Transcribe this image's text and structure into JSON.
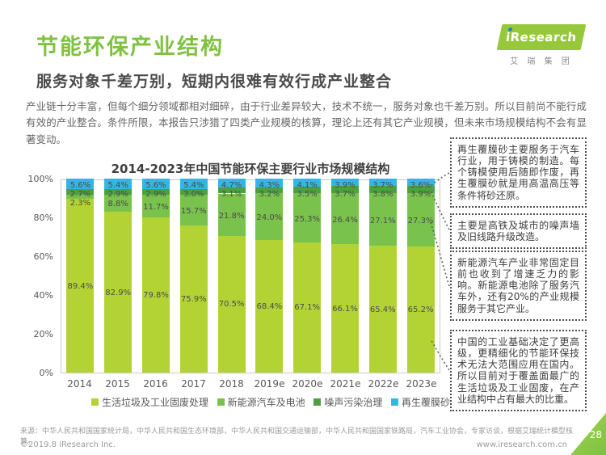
{
  "header": {
    "title": "节能环保产业结构",
    "subtitle": "服务对象千差万别，短期内很难有效行成产业整合",
    "logo": {
      "brand": "iResearch",
      "sub": "艾 瑞 集 团"
    }
  },
  "intro": "产业链十分丰富，但每个细分领域都相对细碎，由于行业差异较大，技术不统一，服务对象也千差万别。所以目前尚不能行成有效的产业整合。条件所限，本报告只涉猎了四类产业规模的核算，理论上还有其它产业规模，但未来市场规模结构不会有显著变动。",
  "chart_data": {
    "type": "bar",
    "stacked": true,
    "title": "2014-2023年中国节能环保主要行业市场规模结构",
    "categories": [
      "2014",
      "2015",
      "2016",
      "2017",
      "2018",
      "2019e",
      "2020e",
      "2021e",
      "2022e",
      "2023e"
    ],
    "series": [
      {
        "name": "生活垃圾及工业固废处理",
        "color": "#b3d335",
        "values": [
          89.4,
          82.9,
          79.8,
          75.9,
          70.5,
          68.4,
          67.1,
          66.1,
          65.4,
          65.2
        ]
      },
      {
        "name": "新能源汽车及电池",
        "color": "#79c24c",
        "values": [
          2.3,
          8.8,
          11.7,
          15.7,
          21.8,
          24.0,
          25.3,
          26.4,
          27.1,
          27.3
        ]
      },
      {
        "name": "噪声污染治理",
        "color": "#4da03f",
        "values": [
          2.7,
          2.9,
          2.9,
          3.0,
          3.1,
          3.2,
          3.5,
          3.7,
          3.8,
          3.9
        ]
      },
      {
        "name": "再生覆膜砂",
        "color": "#33b6e3",
        "values": [
          5.6,
          5.4,
          5.6,
          5.4,
          4.7,
          4.3,
          4.1,
          3.9,
          3.7,
          3.6
        ]
      }
    ],
    "yticks": [
      "100%",
      "80%",
      "60%",
      "40%",
      "20%",
      "0%"
    ],
    "ylim": [
      0,
      100
    ],
    "unit": "%",
    "legend_position": "bottom"
  },
  "callouts": [
    {
      "text": "再生覆膜砂主要服务于汽车行业，用于铸模的制造。每个铸模使用后随即作废，再生覆膜砂就是用高温高压等条件将砂还原。"
    },
    {
      "text": "主要是高铁及城市的噪声墙及旧线路升级改造。"
    },
    {
      "text": "新能源汽车产业非常固定目前也收到了增速乏力的影响。新能源电池除了服务汽车外，还有20%的产业规模服务于其它产业。"
    },
    {
      "text": "中国的工业基础决定了更高级，更精细化的节能环保技术无法大范围应用在国内。所以目前对于覆盖面最广的生活垃圾及工业固废，在产业结构中占有最大的比重。"
    }
  ],
  "footer": {
    "source": "来源：中华人民共和国国家统计局，中华人民共和国生态环境部，中华人民共和国交通运输部，中华人民共和国国家铁路局，汽车工业协会，专家访谈，根据艾瑞统计模型核算。",
    "copyright": "©2019.8 iResearch Inc.",
    "website": "www.iresearch.com.cn",
    "page_number": "28"
  }
}
